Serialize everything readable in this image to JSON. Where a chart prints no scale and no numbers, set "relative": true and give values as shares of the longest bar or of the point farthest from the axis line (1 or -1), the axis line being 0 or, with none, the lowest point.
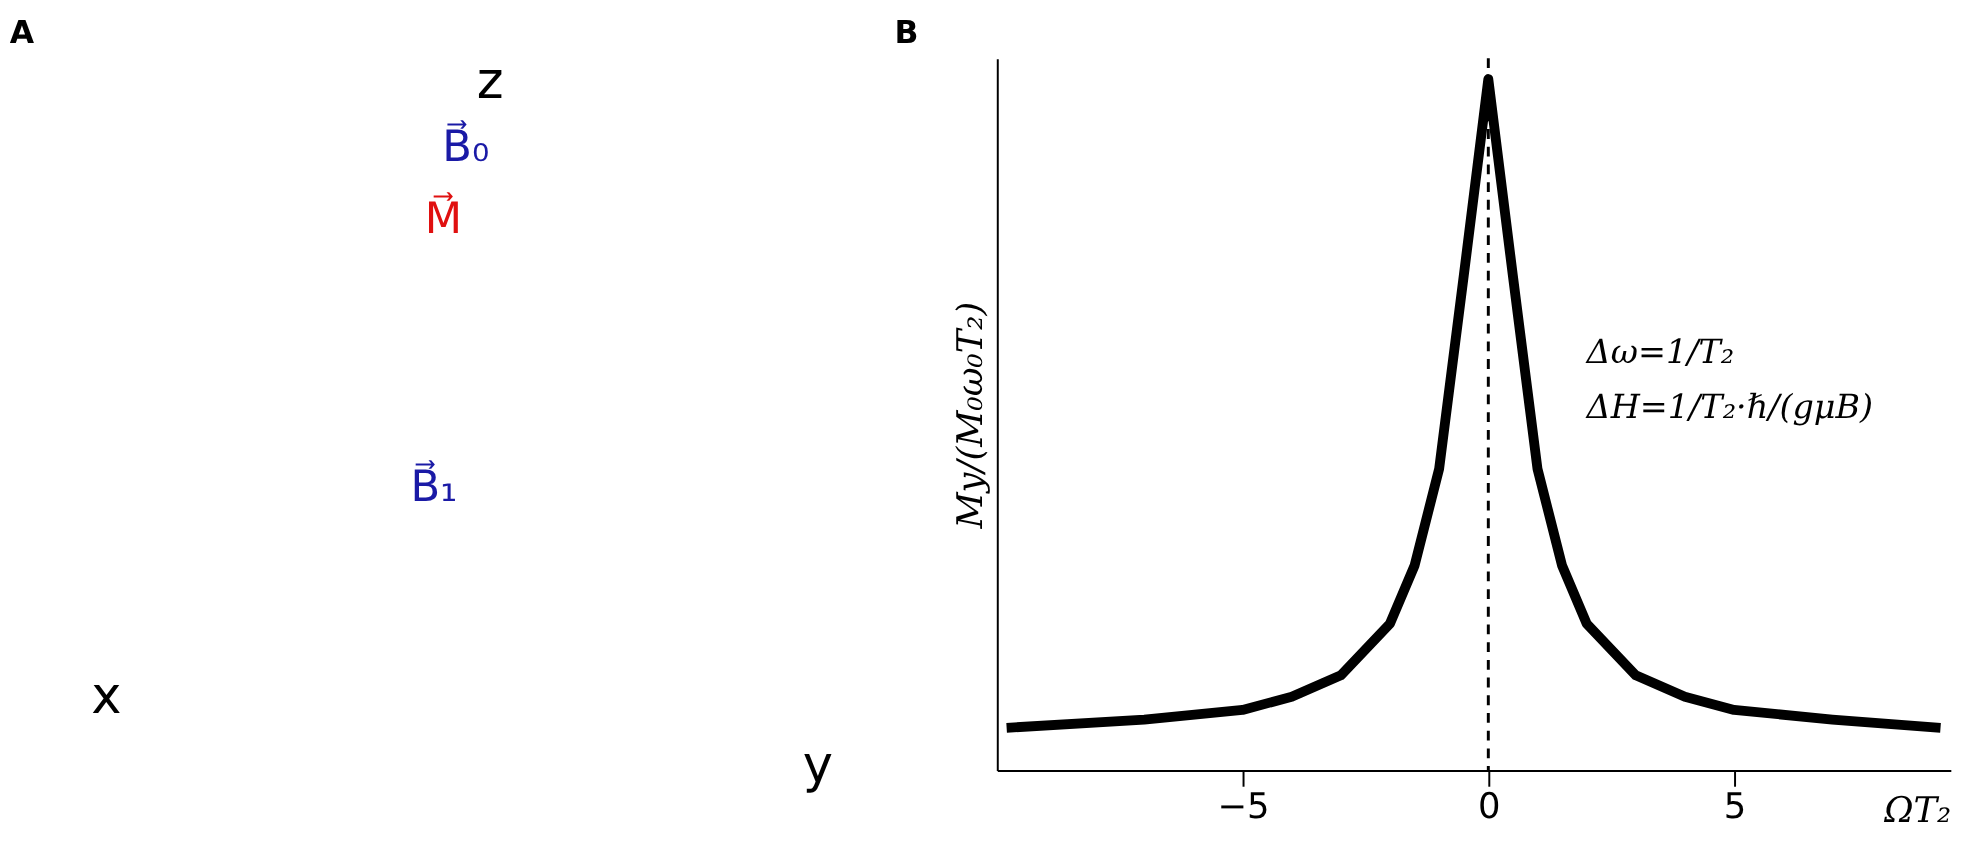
{
  "chart_data": [
    {
      "type": "other",
      "title": "A",
      "annotations": [
        "z",
        "x",
        "y",
        "B⃗₀",
        "M⃗",
        "B⃗₁"
      ]
    },
    {
      "type": "line",
      "title": "B",
      "xlabel": "ΩT₂",
      "ylabel": "My/(M₀ω₀T₂)",
      "relative": true,
      "x": [
        -9.8,
        -7,
        -5,
        -4,
        -3,
        -2,
        -1.5,
        -1,
        -0.5,
        0,
        0.5,
        1,
        1.5,
        2,
        3,
        4,
        5,
        7,
        9.2
      ],
      "series": [
        {
          "color": "#000000",
          "values": [
            0.061,
            0.073,
            0.087,
            0.106,
            0.137,
            0.212,
            0.296,
            0.436,
            0.715,
            1,
            0.715,
            0.436,
            0.296,
            0.212,
            0.137,
            0.106,
            0.087,
            0.073,
            0.061
          ]
        }
      ],
      "xlim": [
        -10,
        9.4
      ],
      "xticks": [
        -5,
        0,
        5
      ],
      "tick_labels": "x",
      "grid": false,
      "marker": "none",
      "line_style": "solid",
      "ref_lines": [
        {
          "axis": "x",
          "value": 0,
          "line_style": "dashed",
          "color": "#000000"
        }
      ],
      "annotations": [
        "Δω=1/T₂",
        "ΔH=1/T₂·ℏ/(gμB)"
      ]
    }
  ]
}
